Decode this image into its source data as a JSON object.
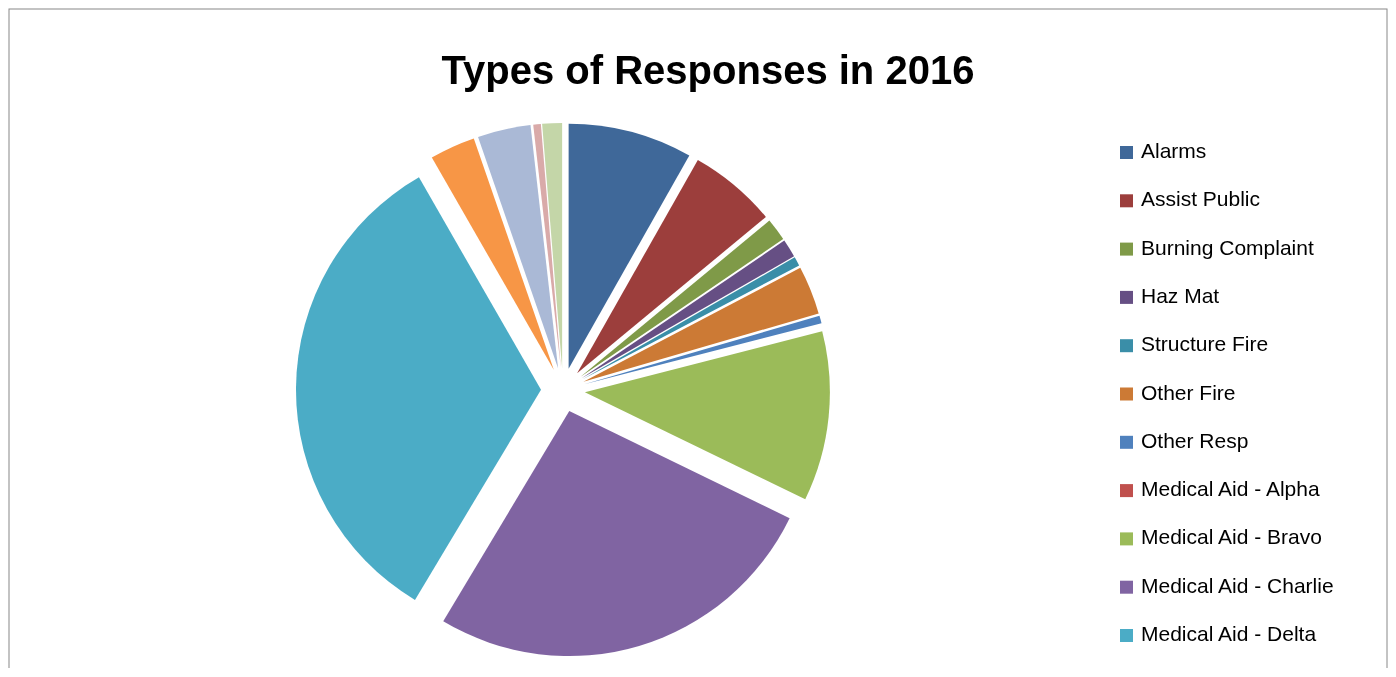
{
  "chart_data": {
    "type": "pie",
    "title": "Types of Responses in 2016",
    "categories": [
      "Alarms",
      "Assist Public",
      "Burning Complaint",
      "Haz Mat",
      "Structure Fire",
      "Other Fire",
      "Other Resp",
      "Medical Aid - Alpha",
      "Medical Aid - Bravo",
      "Medical Aid - Charlie",
      "Medical Aid - Delta",
      null,
      null,
      null,
      null
    ],
    "values": [
      8.2,
      5.8,
      1.5,
      1.2,
      0.6,
      3.2,
      0.5,
      0,
      11.2,
      26.4,
      33.1,
      3,
      3.5,
      0.5,
      1.3
    ],
    "colors": [
      "#3f6899",
      "#9c3e3c",
      "#7f9a48",
      "#664f84",
      "#3a8ea8",
      "#cc7a35",
      "#4f81bd",
      "#c0504d",
      "#9bbb59",
      "#8064a2",
      "#4bacc6",
      "#f79646",
      "#aab9d6",
      "#d9aaa9",
      "#c4d6a8"
    ],
    "legend": "right"
  }
}
